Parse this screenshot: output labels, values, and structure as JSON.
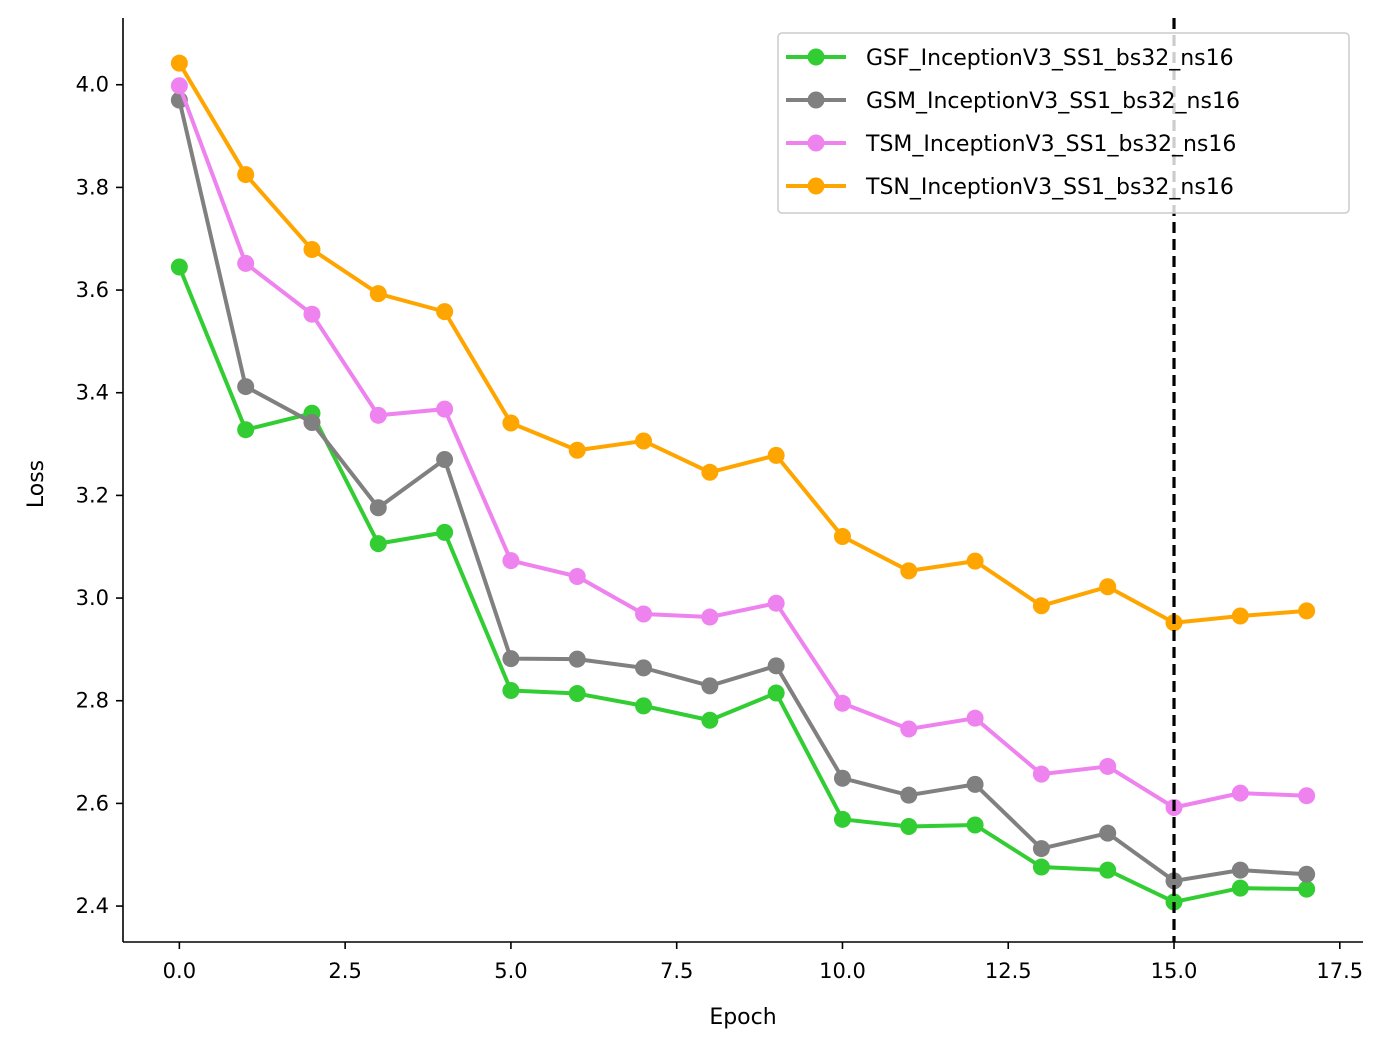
{
  "chart_data": {
    "type": "line",
    "title": "",
    "xlabel": "Epoch",
    "ylabel": "Loss",
    "xlim": [
      -0.85,
      17.85
    ],
    "ylim": [
      2.33,
      4.13
    ],
    "xticks": [
      0.0,
      2.5,
      5.0,
      7.5,
      10.0,
      12.5,
      15.0,
      17.5
    ],
    "xtick_labels": [
      "0.0",
      "2.5",
      "5.0",
      "7.5",
      "10.0",
      "12.5",
      "15.0",
      "17.5"
    ],
    "yticks": [
      2.4,
      2.6,
      2.8,
      3.0,
      3.2,
      3.4,
      3.6,
      3.8,
      4.0
    ],
    "ytick_labels": [
      "2.4",
      "2.6",
      "2.8",
      "3.0",
      "3.2",
      "3.4",
      "3.6",
      "3.8",
      "4.0"
    ],
    "grid": false,
    "legend_position": "top-right",
    "vline": {
      "x": 15,
      "style": "dashed",
      "color": "#000000"
    },
    "x": [
      0,
      1,
      2,
      3,
      4,
      5,
      6,
      7,
      8,
      9,
      10,
      11,
      12,
      13,
      14,
      15,
      16,
      17
    ],
    "series": [
      {
        "name": "GSF_InceptionV3_SS1_bs32_ns16",
        "color": "#32CD32",
        "values": [
          3.645,
          3.328,
          3.36,
          3.106,
          3.128,
          2.82,
          2.814,
          2.79,
          2.762,
          2.815,
          2.569,
          2.555,
          2.558,
          2.476,
          2.47,
          2.408,
          2.435,
          2.433
        ]
      },
      {
        "name": "GSM_InceptionV3_SS1_bs32_ns16",
        "color": "#808080",
        "values": [
          3.97,
          3.412,
          3.342,
          3.176,
          3.27,
          2.882,
          2.881,
          2.864,
          2.829,
          2.868,
          2.649,
          2.616,
          2.637,
          2.512,
          2.542,
          2.449,
          2.47,
          2.462
        ]
      },
      {
        "name": "TSM_InceptionV3_SS1_bs32_ns16",
        "color": "#EE82EE",
        "values": [
          3.998,
          3.652,
          3.553,
          3.356,
          3.368,
          3.073,
          3.042,
          2.969,
          2.963,
          2.99,
          2.795,
          2.745,
          2.766,
          2.657,
          2.672,
          2.592,
          2.62,
          2.615
        ]
      },
      {
        "name": "TSN_InceptionV3_SS1_bs32_ns16",
        "color": "#FFA500",
        "values": [
          4.042,
          3.825,
          3.679,
          3.593,
          3.558,
          3.341,
          3.288,
          3.306,
          3.245,
          3.278,
          3.12,
          3.053,
          3.072,
          2.985,
          3.022,
          2.952,
          2.965,
          2.975
        ]
      }
    ]
  }
}
